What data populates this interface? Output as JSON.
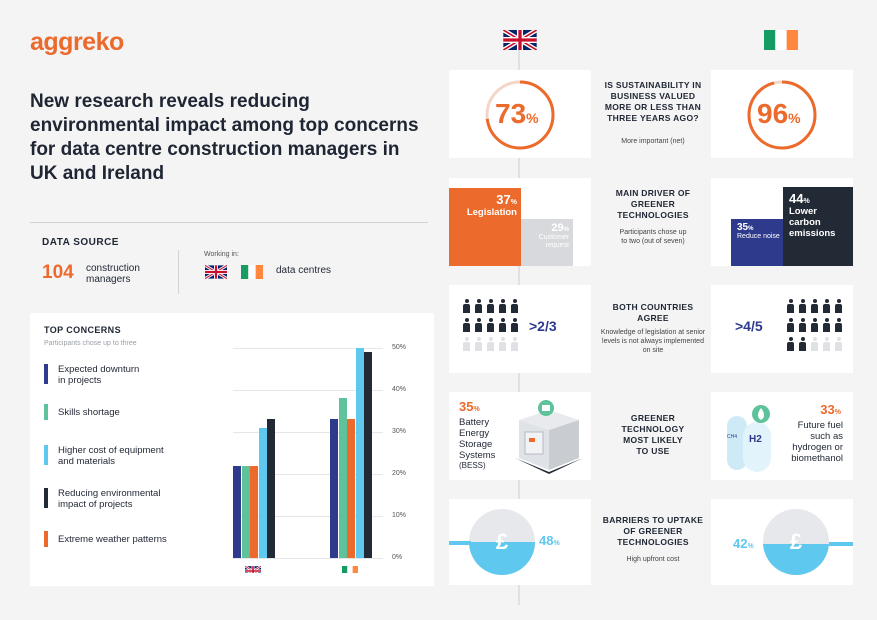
{
  "brand": "aggreko",
  "headline": "New research reveals reducing environmental impact among top concerns for data centre construction managers in UK and Ireland",
  "data_source": {
    "title": "DATA SOURCE",
    "count": "104",
    "count_label_1": "construction",
    "count_label_2": "managers",
    "working_in": "Working in:",
    "sector": "data centres"
  },
  "top_concerns": {
    "title": "TOP CONCERNS",
    "subtitle": "Participants chose up to three",
    "legend": [
      {
        "line1": "Expected downturn",
        "line2": "in projects",
        "color": "#2e3b8c"
      },
      {
        "line1": "Skills shortage",
        "line2": "",
        "color": "#5ec29b"
      },
      {
        "line1": "Higher cost of equipment",
        "line2": "and materials",
        "color": "#5fc8ee"
      },
      {
        "line1": "Reducing environmental",
        "line2": "impact of projects",
        "color": "#222a35"
      },
      {
        "line1": "Extreme weather patterns",
        "line2": "",
        "color": "#ec6a2c"
      }
    ],
    "y_ticks": [
      "50%",
      "40%",
      "30%",
      "20%",
      "10%",
      "0%"
    ]
  },
  "chart_data": {
    "type": "bar",
    "title": "TOP CONCERNS",
    "categories": [
      "UK",
      "Ireland"
    ],
    "series": [
      {
        "name": "Expected downturn in projects",
        "values": [
          22,
          33
        ]
      },
      {
        "name": "Skills shortage",
        "values": [
          22,
          38
        ]
      },
      {
        "name": "Extreme weather patterns",
        "values": [
          22,
          33
        ]
      },
      {
        "name": "Higher cost of equipment and materials",
        "values": [
          31,
          50
        ]
      },
      {
        "name": "Reducing environmental impact of projects",
        "values": [
          33,
          49
        ]
      }
    ],
    "ylim": [
      0,
      50
    ],
    "ylabel": "",
    "xlabel": ""
  },
  "uk": {
    "sustainability_value": "73",
    "legislation_value": "37",
    "legislation_label": "Legislation",
    "customer_value": "29",
    "customer_label": "Customer request",
    "agree_value": ">2/3",
    "bess_value": "35",
    "bess_label": "Battery Energy Storage Systems",
    "bess_abbr": "(BESS)",
    "cost_value": "48"
  },
  "ie": {
    "sustainability_value": "96",
    "carbon_value": "44",
    "carbon_label": "Lower carbon emissions",
    "noise_value": "35",
    "noise_label": "Reduce noise",
    "agree_value": ">4/5",
    "fuel_value": "33",
    "fuel_label": "Future fuel such as hydrogen or biomethanol",
    "cost_value": "42"
  },
  "questions": [
    {
      "title": "IS SUSTAINABILITY IN BUSINESS VALUED MORE OR LESS THAN THREE YEARS AGO?",
      "sub": "More important (net)"
    },
    {
      "title": "MAIN DRIVER OF GREENER TECHNOLOGIES",
      "sub": "Participants chose up to two (out of seven)"
    },
    {
      "title": "BOTH COUNTRIES AGREE",
      "sub": "Knowledge of legislation at senior levels is not always implemented on site"
    },
    {
      "title": "GREENER TECHNOLOGY MOST LIKELY TO USE",
      "sub": ""
    },
    {
      "title": "BARRIERS TO UPTAKE OF GREENER TECHNOLOGIES",
      "sub": "High upfront cost"
    }
  ],
  "percent_sign": "%",
  "pound_sign": "£",
  "h2_label": "H2",
  "ch4_label": "CH4",
  "colors": {
    "orange": "#ec6a2c",
    "navy": "#2e3b8c",
    "dark": "#222a35",
    "lightblue": "#5fc8ee",
    "green": "#5ec29b"
  }
}
